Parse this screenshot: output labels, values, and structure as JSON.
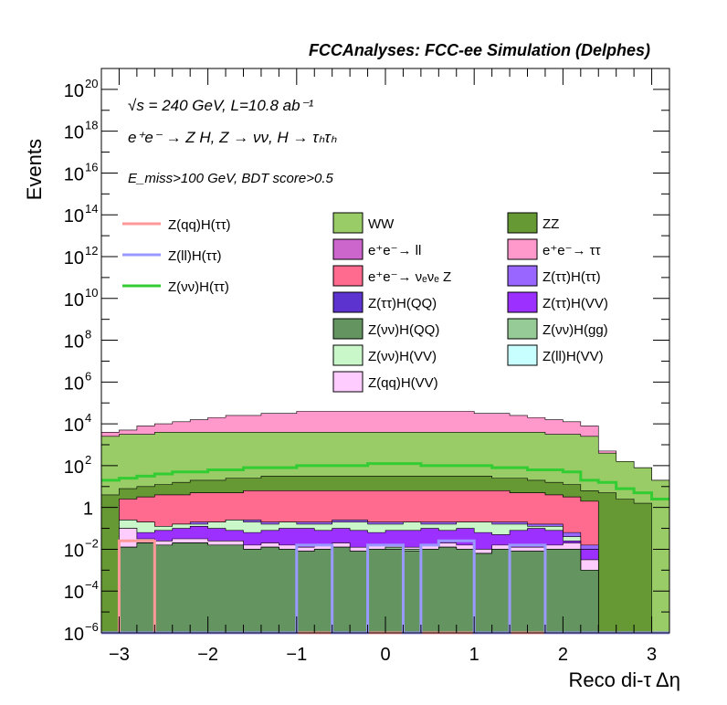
{
  "chart_data": {
    "type": "area",
    "title": "FCCAnalyses: FCC-ee Simulation (Delphes)",
    "xlabel": "Reco di-τ Δη",
    "ylabel": "Events",
    "yscale": "log",
    "xlim": [
      -3.2,
      3.2
    ],
    "ylim": [
      1e-06,
      1e+21
    ],
    "x_ticks": [
      -3,
      -2,
      -1,
      0,
      1,
      2,
      3
    ],
    "x_tick_labels": [
      "−3",
      "−2",
      "−1",
      "0",
      "1",
      "2",
      "3"
    ],
    "y_tick_labels": [
      {
        "exp": -6,
        "label": "10",
        "sup": "−6"
      },
      {
        "exp": -4,
        "label": "10",
        "sup": "−4"
      },
      {
        "exp": -2,
        "label": "10",
        "sup": "−2"
      },
      {
        "exp": 0,
        "label": "1",
        "sup": ""
      },
      {
        "exp": 2,
        "label": "10",
        "sup": "2"
      },
      {
        "exp": 4,
        "label": "10",
        "sup": "4"
      },
      {
        "exp": 6,
        "label": "10",
        "sup": "6"
      },
      {
        "exp": 8,
        "label": "10",
        "sup": "8"
      },
      {
        "exp": 10,
        "label": "10",
        "sup": "10"
      },
      {
        "exp": 12,
        "label": "10",
        "sup": "12"
      },
      {
        "exp": 14,
        "label": "10",
        "sup": "14"
      },
      {
        "exp": 16,
        "label": "10",
        "sup": "16"
      },
      {
        "exp": 18,
        "label": "10",
        "sup": "18"
      },
      {
        "exp": 20,
        "label": "10",
        "sup": "20"
      }
    ],
    "annotations": {
      "line1": "√s = 240 GeV, L=10.8 ab⁻¹",
      "line2": "e⁺e⁻ → Z H, Z → νν, H → τₕτₕ",
      "line3": "E_miss>100 GeV, BDT score>0.5"
    },
    "bin_edges": [
      -3.2,
      -3.0,
      -2.8,
      -2.6,
      -2.4,
      -2.2,
      -2.0,
      -1.8,
      -1.6,
      -1.4,
      -1.2,
      -1.0,
      -0.8,
      -0.6,
      -0.4,
      -0.2,
      0.0,
      0.2,
      0.4,
      0.6,
      0.8,
      1.0,
      1.2,
      1.4,
      1.6,
      1.8,
      2.0,
      2.2,
      2.4,
      2.6,
      2.8,
      3.0,
      3.2
    ],
    "stack_order_bottom_to_top": [
      "Z(νν)H(QQ)",
      "Z(ττ)H(QQ)",
      "Z(νν)H(gg)",
      "Z(ll)H(VV)",
      "Z(qq)H(VV)",
      "Z(ττ)H(VV)",
      "Z(νν)H(VV)",
      "Z(ττ)H(ττ)",
      "e⁺e⁻→ νₑνₑ Z",
      "e⁺e⁻→ ll",
      "ZZ",
      "WW",
      "e⁺e⁻→ ττ"
    ],
    "stacked_series": [
      {
        "name": "Z(νν)H(QQ)",
        "color": "#64945f",
        "log10_top": [
          -6,
          -1.9,
          -1.7,
          -1.8,
          -1.7,
          -1.7,
          -1.8,
          -1.8,
          -2.0,
          -1.9,
          -2.0,
          -2.1,
          -2.0,
          -1.9,
          -2.1,
          -2.0,
          -2.0,
          -2.1,
          -2.0,
          -1.9,
          -2.0,
          -2.2,
          -2.0,
          -2.1,
          -2.1,
          -2.0,
          -2.0,
          -3.0,
          -6,
          -6,
          -6,
          -6
        ]
      },
      {
        "name": "Z(ττ)H(QQ)",
        "color": "#5d33cf",
        "log10_top": [
          -6,
          -1.9,
          -1.7,
          -5.0,
          -1.7,
          -1.7,
          -1.8,
          -1.8,
          -2.0,
          -1.9,
          -2.0,
          -2.1,
          -2.0,
          -1.9,
          -2.1,
          -2.0,
          -2.0,
          -2.1,
          -2.0,
          -1.9,
          -2.0,
          -2.2,
          -2.0,
          -2.1,
          -2.1,
          -2.0,
          -2.0,
          -3.0,
          -6,
          -6,
          -6,
          -6
        ]
      },
      {
        "name": "Z(νν)H(gg)",
        "color": "#96ca96",
        "log10_top": [
          -6,
          -1.9,
          -1.7,
          -1.8,
          -1.7,
          -1.7,
          -1.8,
          -1.8,
          -2.0,
          -1.9,
          -2.0,
          -2.1,
          -2.0,
          -1.9,
          -2.1,
          -2.0,
          -1.9,
          -2.0,
          -2.0,
          -1.9,
          -2.0,
          -2.2,
          -2.0,
          -2.1,
          -2.1,
          -2.0,
          -2.0,
          -3.0,
          -6,
          -6,
          -6,
          -6
        ]
      },
      {
        "name": "Z(ll)H(VV)",
        "color": "#c8ffff",
        "log10_top": [
          -6,
          -1.9,
          -1.7,
          -1.8,
          -1.7,
          -1.7,
          -1.8,
          -1.8,
          -2.0,
          -1.9,
          -2.0,
          -2.1,
          -2.0,
          -1.9,
          -2.1,
          -2.0,
          -1.9,
          -2.0,
          -2.0,
          -1.9,
          -2.0,
          -2.2,
          -2.0,
          -2.1,
          -2.1,
          -2.0,
          -2.0,
          -3.0,
          -6,
          -6,
          -6,
          -6
        ]
      },
      {
        "name": "Z(qq)H(VV)",
        "color": "#ffccff",
        "log10_top": [
          -6,
          -1.0,
          -1.5,
          -1.6,
          -1.5,
          -1.5,
          -1.6,
          -1.6,
          -1.8,
          -1.7,
          -1.8,
          -1.9,
          -1.8,
          -1.7,
          -1.9,
          -1.8,
          -1.8,
          -1.9,
          -1.8,
          -1.7,
          -1.8,
          -2.0,
          -1.8,
          -1.9,
          -1.9,
          -1.8,
          -1.7,
          -2.5,
          -6,
          -6,
          -6,
          -6
        ]
      },
      {
        "name": "Z(ττ)H(VV)",
        "color": "#9b30ff",
        "log10_top": [
          -6,
          -1.0,
          -1.2,
          -1.1,
          -1.0,
          -0.9,
          -1.0,
          -1.1,
          -1.2,
          -1.1,
          -1.0,
          -1.0,
          -1.1,
          -1.0,
          -1.1,
          -1.2,
          -1.1,
          -1.1,
          -1.0,
          -1.1,
          -1.0,
          -1.2,
          -1.3,
          -1.1,
          -1.0,
          -1.1,
          -1.6,
          -2.0,
          -6,
          -6,
          -6,
          -6
        ]
      },
      {
        "name": "Z(νν)H(VV)",
        "color": "#c9f7c9",
        "log10_top": [
          -6,
          -0.6,
          -0.7,
          -0.9,
          -0.8,
          -0.8,
          -0.7,
          -0.6,
          -0.7,
          -0.8,
          -0.7,
          -0.8,
          -0.8,
          -0.7,
          -0.7,
          -0.8,
          -0.8,
          -0.7,
          -0.8,
          -0.8,
          -0.7,
          -0.7,
          -0.8,
          -0.8,
          -0.9,
          -0.9,
          -1.4,
          -2.0,
          -6,
          -6,
          -6,
          -6
        ]
      },
      {
        "name": "Z(ττ)H(ττ)",
        "color": "#9966ff",
        "log10_top": [
          -6,
          -0.6,
          -0.7,
          -0.9,
          -0.8,
          -0.7,
          -0.7,
          -0.6,
          -0.6,
          -0.7,
          -0.7,
          -0.7,
          -0.7,
          -0.6,
          -0.6,
          -0.7,
          -0.7,
          -0.7,
          -0.7,
          -0.7,
          -0.7,
          -0.7,
          -0.7,
          -0.7,
          -0.8,
          -0.8,
          -1.2,
          -1.8,
          -6,
          -6,
          -6,
          -6
        ]
      },
      {
        "name": "e⁺e⁻→ νₑνₑ Z",
        "color": "#ff6a8f",
        "log10_top": [
          -6,
          0.4,
          0.5,
          0.6,
          0.6,
          0.7,
          0.7,
          0.7,
          0.8,
          0.8,
          0.8,
          0.8,
          0.8,
          0.8,
          0.8,
          0.8,
          0.8,
          0.8,
          0.8,
          0.8,
          0.8,
          0.8,
          0.8,
          0.7,
          0.7,
          0.6,
          0.5,
          0.3,
          -6,
          -6,
          -6,
          -6
        ]
      },
      {
        "name": "e⁺e⁻→ ll",
        "color": "#cc66cc",
        "log10_top": [
          -6,
          0.4,
          0.5,
          0.6,
          0.6,
          0.7,
          0.7,
          0.7,
          0.8,
          0.8,
          0.8,
          0.8,
          0.8,
          0.8,
          0.8,
          0.8,
          0.8,
          0.8,
          0.8,
          0.8,
          0.8,
          0.8,
          0.8,
          0.7,
          0.7,
          0.6,
          0.5,
          0.3,
          -6,
          -6,
          -6,
          -6
        ]
      },
      {
        "name": "ZZ",
        "color": "#669933",
        "log10_top": [
          0.6,
          0.9,
          1.0,
          1.1,
          1.2,
          1.3,
          1.3,
          1.4,
          1.4,
          1.5,
          1.5,
          1.5,
          1.5,
          1.5,
          1.5,
          1.5,
          1.5,
          1.5,
          1.5,
          1.5,
          1.5,
          1.5,
          1.4,
          1.4,
          1.3,
          1.2,
          1.1,
          0.8,
          0.7,
          0.4,
          0.2,
          -6
        ]
      },
      {
        "name": "WW",
        "color": "#99cc66",
        "log10_top": [
          3.4,
          3.5,
          3.5,
          3.6,
          3.6,
          3.6,
          3.6,
          3.6,
          3.6,
          3.6,
          3.6,
          3.6,
          3.6,
          3.6,
          3.6,
          3.6,
          3.6,
          3.6,
          3.6,
          3.6,
          3.6,
          3.6,
          3.6,
          3.6,
          3.6,
          3.5,
          3.5,
          3.4,
          2.6,
          2.2,
          1.9,
          1.3
        ]
      },
      {
        "name": "e⁺e⁻→ ττ",
        "color": "#ff99cc",
        "log10_top": [
          3.6,
          3.7,
          3.9,
          4.0,
          4.1,
          4.2,
          4.3,
          4.4,
          4.4,
          4.5,
          4.5,
          4.6,
          4.6,
          4.6,
          4.6,
          4.6,
          4.6,
          4.6,
          4.6,
          4.6,
          4.6,
          4.5,
          4.5,
          4.4,
          4.3,
          4.2,
          4.1,
          3.9,
          2.7,
          2.2,
          1.9,
          1.3
        ]
      }
    ],
    "line_series": [
      {
        "name": "Z(qq)H(ττ)",
        "color": "#ff9999",
        "log10": [
          -6,
          -1.6,
          -1.6,
          -6,
          -6,
          -6,
          -6,
          -6,
          -6,
          -6,
          -6,
          -6,
          -6,
          -6,
          -6,
          -6,
          -6,
          -6,
          -6,
          -6,
          -6,
          -6,
          -6,
          -6,
          -6,
          -6,
          -6,
          -6,
          -6,
          -6,
          -6,
          -6
        ]
      },
      {
        "name": "Z(ll)H(ττ)",
        "color": "#9999ff",
        "log10": [
          -6,
          -6,
          -6,
          -6,
          -6,
          -6,
          -6,
          -6,
          -6,
          -6,
          -6,
          -1.8,
          -1.8,
          -6,
          -6,
          -1.8,
          -1.8,
          -6,
          -1.8,
          -1.6,
          -1.6,
          -6,
          -6,
          -1.8,
          -1.8,
          -6,
          -6,
          -6,
          -6,
          -6,
          -6,
          -6
        ]
      },
      {
        "name": "Z(νν)H(ττ)",
        "color": "#33cc33",
        "log10": [
          1.3,
          1.4,
          1.5,
          1.6,
          1.7,
          1.7,
          1.8,
          1.8,
          1.9,
          1.9,
          1.9,
          2.0,
          2.0,
          2.0,
          2.0,
          2.1,
          2.1,
          2.1,
          2.0,
          2.0,
          2.0,
          2.0,
          1.9,
          1.9,
          1.8,
          1.8,
          1.7,
          1.3,
          1.2,
          0.9,
          0.7,
          0.4
        ]
      }
    ],
    "legend": {
      "lines": [
        "Z(qq)H(ττ)",
        "Z(ll)H(ττ)",
        "Z(νν)H(ττ)"
      ],
      "boxes": [
        [
          "WW",
          "ZZ"
        ],
        [
          "e⁺e⁻→ ll",
          "e⁺e⁻→ ττ"
        ],
        [
          "e⁺e⁻→ νₑνₑ Z",
          "Z(ττ)H(ττ)"
        ],
        [
          "Z(ττ)H(QQ)",
          "Z(ττ)H(VV)"
        ],
        [
          "Z(νν)H(QQ)",
          "Z(νν)H(gg)"
        ],
        [
          "Z(νν)H(VV)",
          "Z(ll)H(VV)"
        ],
        [
          "Z(qq)H(VV)",
          ""
        ]
      ]
    }
  }
}
